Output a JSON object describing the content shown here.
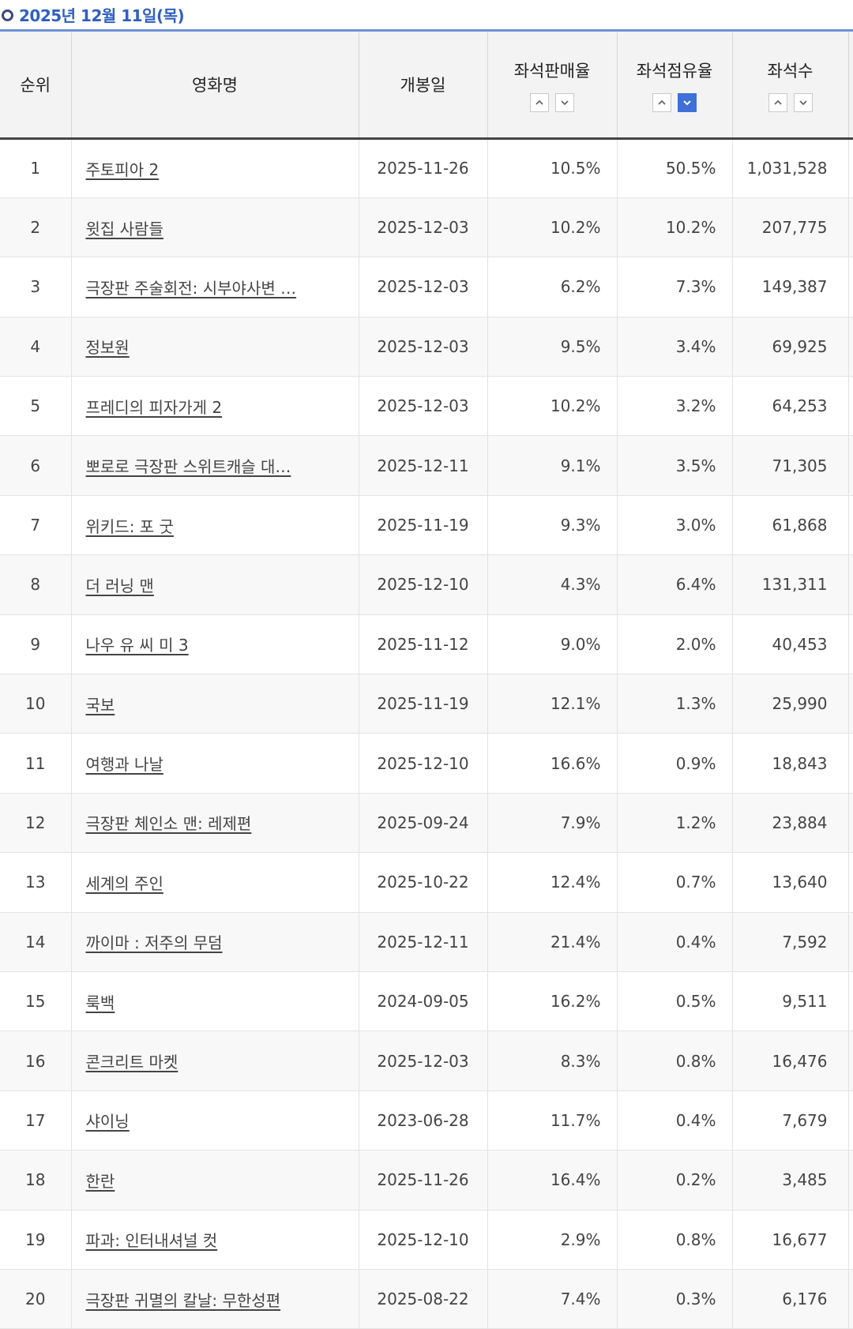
{
  "header": {
    "date": "2025년 12월 11일(목)"
  },
  "columns": {
    "rank": "순위",
    "title": "영화명",
    "open_date": "개봉일",
    "sales_rate": "좌석판매율",
    "share_rate": "좌석점유율",
    "seats": "좌석수"
  },
  "sort": {
    "active_column": "share_rate",
    "active_direction": "down"
  },
  "rows": [
    {
      "rank": "1",
      "title": "주토피아 2",
      "open_date": "2025-11-26",
      "sales_rate": "10.5%",
      "share_rate": "50.5%",
      "seats": "1,031,528"
    },
    {
      "rank": "2",
      "title": "윗집 사람들",
      "open_date": "2025-12-03",
      "sales_rate": "10.2%",
      "share_rate": "10.2%",
      "seats": "207,775"
    },
    {
      "rank": "3",
      "title": "극장판 주술회전: 시부야사변 …",
      "open_date": "2025-12-03",
      "sales_rate": "6.2%",
      "share_rate": "7.3%",
      "seats": "149,387"
    },
    {
      "rank": "4",
      "title": "정보원",
      "open_date": "2025-12-03",
      "sales_rate": "9.5%",
      "share_rate": "3.4%",
      "seats": "69,925"
    },
    {
      "rank": "5",
      "title": "프레디의 피자가게 2",
      "open_date": "2025-12-03",
      "sales_rate": "10.2%",
      "share_rate": "3.2%",
      "seats": "64,253"
    },
    {
      "rank": "6",
      "title": "뽀로로 극장판 스위트캐슬 대…",
      "open_date": "2025-12-11",
      "sales_rate": "9.1%",
      "share_rate": "3.5%",
      "seats": "71,305"
    },
    {
      "rank": "7",
      "title": "위키드: 포 굿",
      "open_date": "2025-11-19",
      "sales_rate": "9.3%",
      "share_rate": "3.0%",
      "seats": "61,868"
    },
    {
      "rank": "8",
      "title": "더 러닝 맨",
      "open_date": "2025-12-10",
      "sales_rate": "4.3%",
      "share_rate": "6.4%",
      "seats": "131,311"
    },
    {
      "rank": "9",
      "title": "나우 유 씨 미 3",
      "open_date": "2025-11-12",
      "sales_rate": "9.0%",
      "share_rate": "2.0%",
      "seats": "40,453"
    },
    {
      "rank": "10",
      "title": "국보",
      "open_date": "2025-11-19",
      "sales_rate": "12.1%",
      "share_rate": "1.3%",
      "seats": "25,990"
    },
    {
      "rank": "11",
      "title": "여행과 나날",
      "open_date": "2025-12-10",
      "sales_rate": "16.6%",
      "share_rate": "0.9%",
      "seats": "18,843"
    },
    {
      "rank": "12",
      "title": "극장판 체인소 맨: 레제편",
      "open_date": "2025-09-24",
      "sales_rate": "7.9%",
      "share_rate": "1.2%",
      "seats": "23,884"
    },
    {
      "rank": "13",
      "title": "세계의 주인",
      "open_date": "2025-10-22",
      "sales_rate": "12.4%",
      "share_rate": "0.7%",
      "seats": "13,640"
    },
    {
      "rank": "14",
      "title": "까이마 : 저주의 무덤",
      "open_date": "2025-12-11",
      "sales_rate": "21.4%",
      "share_rate": "0.4%",
      "seats": "7,592"
    },
    {
      "rank": "15",
      "title": "룩백",
      "open_date": "2024-09-05",
      "sales_rate": "16.2%",
      "share_rate": "0.5%",
      "seats": "9,511"
    },
    {
      "rank": "16",
      "title": "콘크리트 마켓",
      "open_date": "2025-12-03",
      "sales_rate": "8.3%",
      "share_rate": "0.8%",
      "seats": "16,476"
    },
    {
      "rank": "17",
      "title": "샤이닝",
      "open_date": "2023-06-28",
      "sales_rate": "11.7%",
      "share_rate": "0.4%",
      "seats": "7,679"
    },
    {
      "rank": "18",
      "title": "한란",
      "open_date": "2025-11-26",
      "sales_rate": "16.4%",
      "share_rate": "0.2%",
      "seats": "3,485"
    },
    {
      "rank": "19",
      "title": "파과: 인터내셔널 컷",
      "open_date": "2025-12-10",
      "sales_rate": "2.9%",
      "share_rate": "0.8%",
      "seats": "16,677"
    },
    {
      "rank": "20",
      "title": "극장판 귀멸의 칼날: 무한성편",
      "open_date": "2025-08-22",
      "sales_rate": "7.4%",
      "share_rate": "0.3%",
      "seats": "6,176"
    }
  ]
}
